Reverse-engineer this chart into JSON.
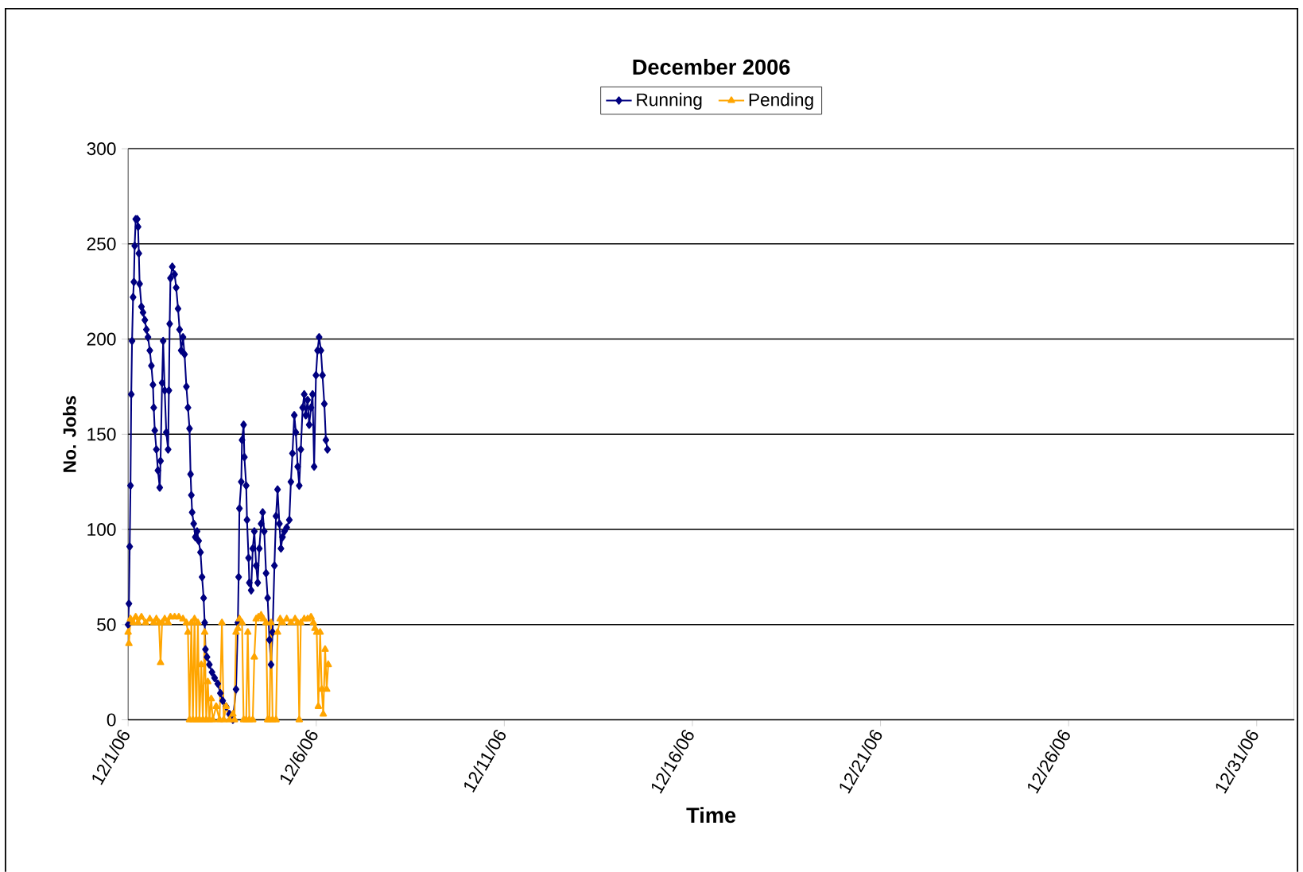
{
  "chart_data": {
    "type": "line",
    "title": "December 2006",
    "xlabel": "Time",
    "ylabel": "No. Jobs",
    "xlim": [
      "2006-12-01T00:00",
      "2007-01-01T00:00"
    ],
    "xticks": [
      {
        "value": "2006-12-01T00:00",
        "label": "12/1/06"
      },
      {
        "value": "2006-12-06T00:00",
        "label": "12/6/06"
      },
      {
        "value": "2006-12-11T00:00",
        "label": "12/11/06"
      },
      {
        "value": "2006-12-16T00:00",
        "label": "12/16/06"
      },
      {
        "value": "2006-12-21T00:00",
        "label": "12/21/06"
      },
      {
        "value": "2006-12-26T00:00",
        "label": "12/26/06"
      },
      {
        "value": "2006-12-31T00:00",
        "label": "12/31/06"
      }
    ],
    "ylim": [
      0,
      300
    ],
    "yticks": [
      0,
      50,
      100,
      150,
      200,
      250,
      300
    ],
    "grid": "y",
    "legend": "top",
    "series": [
      {
        "name": "Running",
        "color": "#000080",
        "marker": "diamond",
        "x": [
          "2006-12-01T00:00",
          "2006-12-01T00:30",
          "2006-12-01T01:00",
          "2006-12-01T01:30",
          "2006-12-01T02:00",
          "2006-12-01T02:30",
          "2006-12-01T03:10",
          "2006-12-01T03:40",
          "2006-12-01T04:10",
          "2006-12-01T04:50",
          "2006-12-01T05:50",
          "2006-12-01T06:20",
          "2006-12-01T06:50",
          "2006-12-01T07:20",
          "2006-12-01T08:30",
          "2006-12-01T09:30",
          "2006-12-01T10:40",
          "2006-12-01T11:40",
          "2006-12-01T12:40",
          "2006-12-01T13:50",
          "2006-12-01T14:50",
          "2006-12-01T15:50",
          "2006-12-01T16:20",
          "2006-12-01T17:00",
          "2006-12-01T18:00",
          "2006-12-01T19:00",
          "2006-12-01T20:10",
          "2006-12-01T20:40",
          "2006-12-01T21:40",
          "2006-12-01T22:20",
          "2006-12-01T23:20",
          "2006-12-02T00:20",
          "2006-12-02T01:30",
          "2006-12-02T02:00",
          "2006-12-02T02:30",
          "2006-12-02T03:00",
          "2006-12-02T04:10",
          "2006-12-02T05:40",
          "2006-12-02T06:40",
          "2006-12-02T07:50",
          "2006-12-02T08:50",
          "2006-12-02T09:50",
          "2006-12-02T11:00",
          "2006-12-02T12:00",
          "2006-12-02T13:10",
          "2006-12-02T14:10",
          "2006-12-02T15:10",
          "2006-12-02T15:50",
          "2006-12-02T16:20",
          "2006-12-02T16:50",
          "2006-12-02T17:50",
          "2006-12-02T18:50",
          "2006-12-02T20:00",
          "2006-12-02T21:00",
          "2006-12-02T22:10",
          "2006-12-02T23:10",
          "2006-12-03T00:10",
          "2006-12-03T00:50",
          "2006-12-03T01:20",
          "2006-12-03T02:20",
          "2006-12-03T03:50",
          "2006-12-03T05:30",
          "2006-12-03T07:10",
          "2006-12-03T09:10",
          "2006-12-03T10:50",
          "2006-12-03T12:20",
          "2006-12-03T14:30",
          "2006-12-03T16:40",
          "2006-12-03T18:50",
          "2006-12-03T20:50",
          "2006-12-03T22:00",
          "2006-12-03T22:30",
          "2006-12-03T23:00",
          "2006-12-04T00:10",
          "2006-12-04T00:40",
          "2006-12-04T01:40",
          "2006-12-04T02:10",
          "2006-12-04T03:20",
          "2006-12-04T03:50",
          "2006-12-04T04:50",
          "2006-12-04T05:20",
          "2006-12-04T06:30",
          "2006-12-04T07:30",
          "2006-12-04T08:30",
          "2006-12-04T09:40",
          "2006-12-04T10:40",
          "2006-12-04T11:40",
          "2006-12-04T12:50",
          "2006-12-04T13:50",
          "2006-12-04T14:50",
          "2006-12-04T16:00",
          "2006-12-04T17:00",
          "2006-12-04T18:10",
          "2006-12-04T19:10",
          "2006-12-04T20:10",
          "2006-12-04T21:20",
          "2006-12-04T22:20",
          "2006-12-04T23:20",
          "2006-12-05T00:30",
          "2006-12-05T01:30",
          "2006-12-05T02:30",
          "2006-12-05T03:40",
          "2006-12-05T05:10",
          "2006-12-05T06:50",
          "2006-12-05T07:50",
          "2006-12-05T08:50",
          "2006-12-05T10:00",
          "2006-12-05T11:00",
          "2006-12-05T12:10",
          "2006-12-05T13:10",
          "2006-12-05T14:10",
          "2006-12-05T15:20",
          "2006-12-05T16:20",
          "2006-12-05T17:20",
          "2006-12-05T18:30",
          "2006-12-05T19:30",
          "2006-12-05T20:40",
          "2006-12-05T21:40",
          "2006-12-05T22:40",
          "2006-12-05T23:50",
          "2006-12-06T00:50",
          "2006-12-06T01:50",
          "2006-12-06T03:00",
          "2006-12-06T04:00",
          "2006-12-06T05:10",
          "2006-12-06T06:10",
          "2006-12-06T07:10"
        ],
        "values": [
          50,
          61,
          91,
          123,
          171,
          199,
          222,
          230,
          249,
          263,
          263,
          259,
          245,
          229,
          217,
          214,
          210,
          205,
          201,
          194,
          186,
          176,
          164,
          152,
          142,
          131,
          122,
          136,
          177,
          199,
          173,
          151,
          142,
          173,
          208,
          232,
          238,
          234,
          227,
          216,
          205,
          194,
          201,
          192,
          175,
          164,
          153,
          129,
          118,
          109,
          103,
          96,
          99,
          94,
          88,
          75,
          64,
          51,
          37,
          33,
          29,
          25,
          22,
          19,
          14,
          10,
          7,
          3,
          0,
          16,
          51,
          75,
          111,
          125,
          147,
          155,
          138,
          123,
          105,
          85,
          72,
          68,
          90,
          99,
          81,
          72,
          90,
          103,
          109,
          99,
          77,
          64,
          42,
          29,
          46,
          81,
          107,
          121,
          103,
          90,
          96,
          99,
          101,
          105,
          125,
          140,
          160,
          151,
          133,
          123,
          142,
          164,
          171,
          160,
          168,
          155,
          164,
          171,
          133,
          181,
          194,
          201,
          194,
          181,
          166,
          147,
          142
        ]
      },
      {
        "name": "Pending",
        "color": "#ffa500",
        "marker": "triangle",
        "x": [
          "2006-12-01T00:00",
          "2006-12-01T00:30",
          "2006-12-01T01:30",
          "2006-12-01T03:10",
          "2006-12-01T04:50",
          "2006-12-01T06:20",
          "2006-12-01T08:30",
          "2006-12-01T11:10",
          "2006-12-01T13:50",
          "2006-12-01T16:20",
          "2006-12-01T18:00",
          "2006-12-01T19:40",
          "2006-12-01T20:40",
          "2006-12-01T21:40",
          "2006-12-01T23:20",
          "2006-12-02T01:30",
          "2006-12-02T03:00",
          "2006-12-02T05:40",
          "2006-12-02T08:20",
          "2006-12-02T11:00",
          "2006-12-02T13:10",
          "2006-12-02T14:10",
          "2006-12-02T15:10",
          "2006-12-02T16:20",
          "2006-12-02T17:20",
          "2006-12-02T18:20",
          "2006-12-02T19:30",
          "2006-12-02T20:30",
          "2006-12-02T21:30",
          "2006-12-02T22:40",
          "2006-12-02T23:40",
          "2006-12-03T00:50",
          "2006-12-03T01:50",
          "2006-12-03T02:50",
          "2006-12-03T03:50",
          "2006-12-03T05:00",
          "2006-12-03T06:00",
          "2006-12-03T08:10",
          "2006-12-03T10:20",
          "2006-12-03T11:50",
          "2006-12-03T13:00",
          "2006-12-03T14:30",
          "2006-12-03T16:40",
          "2006-12-03T18:50",
          "2006-12-03T19:50",
          "2006-12-03T20:50",
          "2006-12-03T22:00",
          "2006-12-03T23:00",
          "2006-12-04T00:40",
          "2006-12-04T01:40",
          "2006-12-04T03:20",
          "2006-12-04T04:20",
          "2006-12-04T05:20",
          "2006-12-04T07:30",
          "2006-12-04T08:30",
          "2006-12-04T09:40",
          "2006-12-04T11:10",
          "2006-12-04T12:50",
          "2006-12-04T14:20",
          "2006-12-04T16:00",
          "2006-12-04T17:00",
          "2006-12-04T18:10",
          "2006-12-04T19:10",
          "2006-12-04T20:10",
          "2006-12-04T22:20",
          "2006-12-04T23:20",
          "2006-12-05T01:00",
          "2006-12-05T02:30",
          "2006-12-05T05:10",
          "2006-12-05T07:50",
          "2006-12-05T10:30",
          "2006-12-05T12:10",
          "2006-12-05T13:10",
          "2006-12-05T14:10",
          "2006-12-05T16:20",
          "2006-12-05T18:30",
          "2006-12-05T20:40",
          "2006-12-05T22:10",
          "2006-12-05T23:10",
          "2006-12-06T00:20",
          "2006-12-06T01:20",
          "2006-12-06T02:30",
          "2006-12-06T03:30",
          "2006-12-06T04:30",
          "2006-12-06T05:40",
          "2006-12-06T06:40",
          "2006-12-06T07:40"
        ],
        "values": [
          46,
          40,
          53,
          51,
          54,
          51,
          54,
          51,
          53,
          51,
          53,
          51,
          30,
          51,
          53,
          51,
          54,
          54,
          54,
          53,
          51,
          46,
          0,
          51,
          0,
          53,
          0,
          51,
          0,
          29,
          0,
          46,
          0,
          20,
          0,
          11,
          0,
          7,
          0,
          51,
          0,
          7,
          0,
          3,
          0,
          46,
          48,
          53,
          51,
          0,
          0,
          46,
          0,
          0,
          33,
          53,
          54,
          55,
          53,
          51,
          0,
          0,
          51,
          0,
          0,
          46,
          53,
          51,
          53,
          51,
          53,
          51,
          0,
          51,
          53,
          53,
          54,
          51,
          48,
          46,
          7,
          46,
          16,
          3,
          37,
          16,
          29
        ]
      }
    ]
  }
}
